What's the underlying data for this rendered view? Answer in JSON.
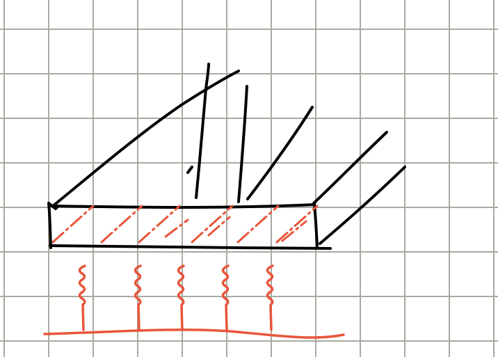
{
  "canvas": {
    "background": "#ffffff",
    "grid_color": "#a9a9a1",
    "ink_color": "#000000",
    "accent_color": "#e8553a"
  },
  "sketch": {
    "elements": [
      {
        "name": "grid-paper",
        "kind": "square grid",
        "color_key": "grid_color"
      },
      {
        "name": "slab-rectangle",
        "kind": "black outlined horizontal bar"
      },
      {
        "name": "slab-hatching",
        "kind": "orange dashed diagonal hatching inside the bar"
      },
      {
        "name": "black-rays",
        "kind": "black lines rising up and to the right from the bar",
        "count": 7
      },
      {
        "name": "heat-wavy-lines",
        "kind": "orange wavy vertical lines",
        "count": 5
      },
      {
        "name": "heat-source-line",
        "kind": "orange horizontal base line"
      }
    ]
  }
}
